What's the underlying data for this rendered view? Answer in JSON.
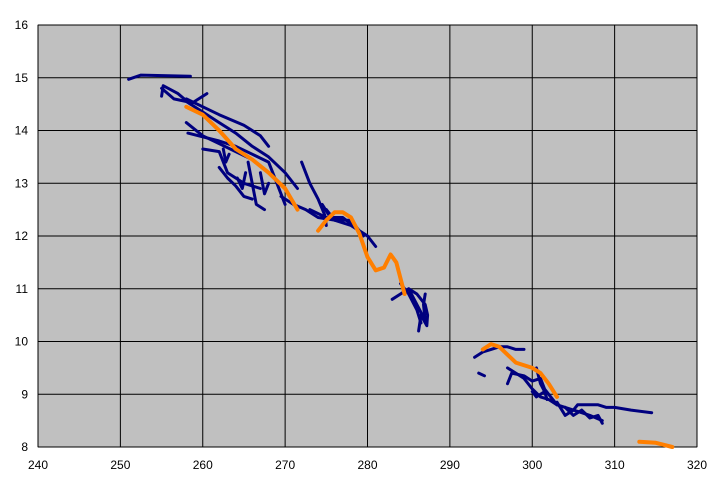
{
  "chart_data": {
    "type": "line",
    "title": "",
    "xlabel": "",
    "ylabel": "",
    "xlim": [
      240,
      320
    ],
    "ylim": [
      8,
      16
    ],
    "x_ticks": [
      240,
      250,
      260,
      270,
      280,
      290,
      300,
      310,
      320
    ],
    "y_ticks": [
      8,
      9,
      10,
      11,
      12,
      13,
      14,
      15,
      16
    ],
    "grid": true,
    "legend": "none",
    "plot_background": "#c0c0c0",
    "series": [
      {
        "color": "#00007f",
        "width": 3,
        "segments": [
          [
            [
              251,
              14.97
            ],
            [
              252.5,
              15.05
            ],
            [
              258.5,
              15.03
            ]
          ],
          [
            [
              255,
              14.65
            ],
            [
              255.2,
              14.85
            ],
            [
              257,
              14.7
            ],
            [
              258.5,
              14.5
            ],
            [
              260.5,
              14.7
            ]
          ],
          [
            [
              255,
              14.8
            ],
            [
              256.5,
              14.6
            ],
            [
              258,
              14.55
            ],
            [
              260,
              14.35
            ],
            [
              262,
              14.15
            ],
            [
              264,
              13.95
            ],
            [
              266,
              13.7
            ],
            [
              268,
              13.5
            ],
            [
              270,
              13.2
            ],
            [
              271.5,
              12.9
            ]
          ],
          [
            [
              258,
              14.6
            ],
            [
              260,
              14.45
            ],
            [
              262,
              14.3
            ],
            [
              265,
              14.1
            ],
            [
              267,
              13.9
            ],
            [
              268,
              13.7
            ]
          ],
          [
            [
              258,
              14.15
            ],
            [
              260,
              13.9
            ],
            [
              262,
              13.75
            ],
            [
              264,
              13.6
            ],
            [
              266,
              13.45
            ]
          ],
          [
            [
              258.2,
              13.95
            ],
            [
              262,
              13.8
            ],
            [
              264,
              13.7
            ],
            [
              266,
              13.55
            ],
            [
              268,
              13.4
            ],
            [
              269,
              13.0
            ],
            [
              270,
              12.6
            ]
          ],
          [
            [
              260,
              13.65
            ],
            [
              262,
              13.6
            ],
            [
              263,
              13.2
            ],
            [
              265,
              13.0
            ],
            [
              267,
              12.9
            ]
          ],
          [
            [
              262,
              13.3
            ],
            [
              263,
              13.1
            ],
            [
              264,
              12.95
            ],
            [
              265,
              12.75
            ],
            [
              266,
              12.7
            ]
          ],
          [
            [
              265.5,
              13.4
            ],
            [
              266,
              13.0
            ],
            [
              266.5,
              12.6
            ],
            [
              267.5,
              12.5
            ]
          ],
          [
            [
              264.2,
              13.1
            ],
            [
              264.8,
              12.9
            ],
            [
              265.2,
              13.2
            ]
          ],
          [
            [
              267,
              13.2
            ],
            [
              267.5,
              12.8
            ],
            [
              268,
              13.0
            ]
          ],
          [
            [
              262.5,
              13.65
            ],
            [
              262.8,
              13.4
            ],
            [
              263.2,
              13.55
            ]
          ],
          [
            [
              269.5,
              12.75
            ],
            [
              271,
              12.6
            ],
            [
              272.5,
              12.5
            ],
            [
              274,
              12.35
            ],
            [
              276,
              12.3
            ],
            [
              278,
              12.2
            ],
            [
              280,
              12.0
            ],
            [
              281,
              11.8
            ]
          ],
          [
            [
              272,
              13.4
            ],
            [
              273,
              13.0
            ],
            [
              274,
              12.7
            ],
            [
              274.8,
              12.4
            ],
            [
              275,
              12.2
            ]
          ],
          [
            [
              273,
              12.5
            ],
            [
              275,
              12.35
            ],
            [
              277,
              12.35
            ],
            [
              279,
              12.1
            ],
            [
              280,
              12.0
            ]
          ],
          [
            [
              275,
              12.5
            ],
            [
              276,
              12.3
            ],
            [
              278,
              12.3
            ],
            [
              279.5,
              12.0
            ]
          ],
          [
            [
              274.5,
              12.6
            ],
            [
              275.3,
              12.4
            ]
          ],
          [
            [
              283,
              10.8
            ],
            [
              284,
              10.9
            ],
            [
              285,
              11.0
            ],
            [
              286,
              10.9
            ],
            [
              287,
              10.7
            ],
            [
              287.3,
              10.5
            ],
            [
              287.2,
              10.3
            ],
            [
              286.5,
              10.5
            ],
            [
              286.2,
              10.2
            ]
          ],
          [
            [
              284,
              11.1
            ],
            [
              285,
              10.9
            ],
            [
              286,
              10.6
            ],
            [
              286.5,
              10.35
            ]
          ],
          [
            [
              285,
              11.0
            ],
            [
              286,
              10.7
            ],
            [
              287,
              10.4
            ],
            [
              286.8,
              10.7
            ],
            [
              287,
              10.9
            ]
          ],
          [
            [
              293,
              9.7
            ],
            [
              294,
              9.8
            ],
            [
              295,
              9.85
            ],
            [
              296,
              9.9
            ],
            [
              297,
              9.9
            ],
            [
              298,
              9.85
            ],
            [
              299,
              9.85
            ]
          ],
          [
            [
              293.5,
              9.4
            ],
            [
              294.2,
              9.35
            ]
          ],
          [
            [
              297,
              9.5
            ],
            [
              298,
              9.4
            ],
            [
              299,
              9.3
            ],
            [
              300,
              9.1
            ],
            [
              301,
              8.95
            ],
            [
              302,
              8.9
            ],
            [
              303,
              8.8
            ],
            [
              304,
              8.75
            ],
            [
              305,
              8.7
            ],
            [
              306,
              8.65
            ],
            [
              307,
              8.6
            ],
            [
              308.5,
              8.5
            ]
          ],
          [
            [
              297,
              9.2
            ],
            [
              297.5,
              9.4
            ],
            [
              299,
              9.35
            ],
            [
              300,
              9.25
            ],
            [
              301,
              9.3
            ],
            [
              301.5,
              9.1
            ],
            [
              302,
              9.0
            ],
            [
              303,
              8.8
            ]
          ],
          [
            [
              300,
              9.05
            ],
            [
              300.5,
              8.95
            ],
            [
              301.5,
              9.05
            ],
            [
              301.8,
              8.9
            ]
          ],
          [
            [
              300.5,
              9.5
            ],
            [
              301,
              9.2
            ],
            [
              301.5,
              9.05
            ]
          ],
          [
            [
              303,
              8.85
            ],
            [
              304,
              8.6
            ],
            [
              305,
              8.7
            ],
            [
              305.5,
              8.8
            ],
            [
              307,
              8.8
            ],
            [
              308,
              8.8
            ],
            [
              309,
              8.75
            ],
            [
              310,
              8.75
            ],
            [
              312,
              8.7
            ],
            [
              314.5,
              8.65
            ]
          ],
          [
            [
              304,
              8.75
            ],
            [
              305,
              8.6
            ],
            [
              306,
              8.7
            ],
            [
              307,
              8.55
            ],
            [
              308,
              8.6
            ],
            [
              308.5,
              8.45
            ]
          ]
        ]
      },
      {
        "color": "#ff7f00",
        "width": 4,
        "segments": [
          [
            [
              258,
              14.45
            ],
            [
              260,
              14.3
            ],
            [
              262,
              14.0
            ],
            [
              264,
              13.65
            ],
            [
              266,
              13.45
            ],
            [
              268,
              13.2
            ],
            [
              270,
              12.9
            ],
            [
              271.5,
              12.5
            ]
          ],
          [
            [
              274,
              12.1
            ],
            [
              275,
              12.3
            ],
            [
              276,
              12.45
            ],
            [
              277,
              12.45
            ],
            [
              278,
              12.35
            ],
            [
              279,
              12.05
            ],
            [
              280,
              11.6
            ],
            [
              281,
              11.35
            ],
            [
              282,
              11.4
            ],
            [
              282.8,
              11.65
            ],
            [
              283.5,
              11.5
            ],
            [
              284.5,
              10.9
            ]
          ],
          [
            [
              294,
              9.85
            ],
            [
              295,
              9.95
            ],
            [
              296,
              9.9
            ],
            [
              297,
              9.75
            ],
            [
              298,
              9.6
            ],
            [
              300,
              9.5
            ],
            [
              301,
              9.4
            ],
            [
              302,
              9.2
            ],
            [
              303,
              8.95
            ]
          ],
          [
            [
              313,
              8.1
            ],
            [
              315,
              8.08
            ],
            [
              317,
              8.0
            ]
          ]
        ]
      }
    ]
  }
}
